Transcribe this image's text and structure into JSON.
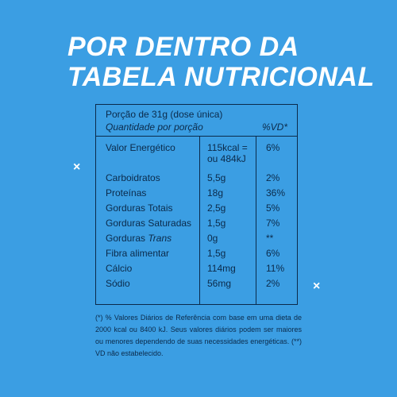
{
  "title": {
    "line1": "POR DENTRO DA",
    "line2": "TABELA NUTRICIONAL"
  },
  "table": {
    "portion": "Porção de 31g (dose única)",
    "quantity_label": "Quantidade por porção",
    "vd_label": "%VD*",
    "energy": {
      "name": "Valor Energético",
      "value_line1": "115kcal =",
      "value_line2": "ou 484kJ",
      "vd": "6%"
    },
    "rows": [
      {
        "name": "Carboidratos",
        "value": "5,5g",
        "vd": "2%"
      },
      {
        "name": "Proteínas",
        "value": "18g",
        "vd": "36%"
      },
      {
        "name": "Gorduras Totais",
        "value": "2,5g",
        "vd": "5%"
      },
      {
        "name": "Gorduras Saturadas",
        "value": "1,5g",
        "vd": "7%"
      },
      {
        "name_prefix": "Gorduras ",
        "name_italic": "Trans",
        "value": "0g",
        "vd": "**"
      },
      {
        "name": "Fibra alimentar",
        "value": "1,5g",
        "vd": "6%"
      },
      {
        "name": "Cálcio",
        "value": "114mg",
        "vd": "11%"
      },
      {
        "name": "Sódio",
        "value": "56mg",
        "vd": "2%"
      }
    ]
  },
  "footnote": "(*) % Valores Diários de Referência com base em uma dieta de 2000 kcal ou 8400 kJ. Seus valores diários podem ser maiores ou menores dependendo de suas necessidades energéticas. (**) VD não estabelecido.",
  "colors": {
    "background": "#3b9ee3",
    "text": "#0b2a4a",
    "title": "#ffffff"
  },
  "decorations": {
    "x_mark_icon": "×"
  }
}
